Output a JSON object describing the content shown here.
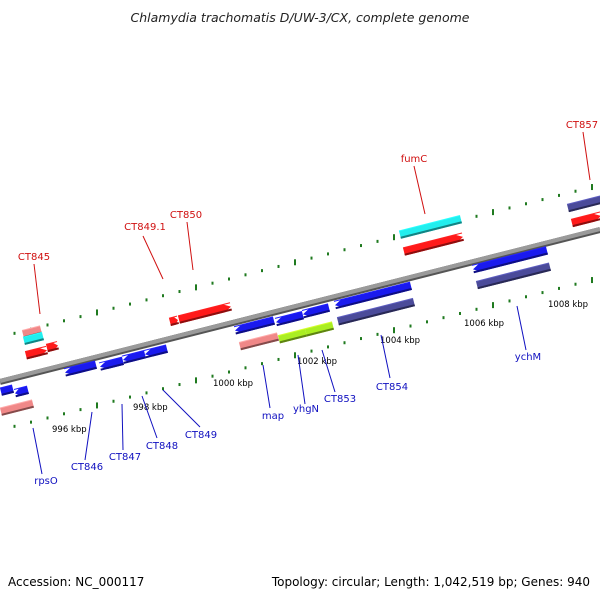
{
  "title": "Chlamydia trachomatis D/UW-3/CX, complete genome",
  "footer": {
    "accession": "Accession: NC_000117",
    "info": "Topology: circular; Length: 1,042,519 bp; Genes: 940"
  },
  "colors": {
    "backbone": "#8a8a8a",
    "ticks": "#1f7a1f",
    "label_plus": "#d01010",
    "label_minus": "#1010c0",
    "red_gene": "#ff1a1a",
    "blue_gene": "#1a1aee",
    "cyan_gene": "#22eeee",
    "pink_gene": "#f08888",
    "green_gene": "#aaee22",
    "slate_gene": "#4b4b9a"
  },
  "kbp_labels": [
    "996 kbp",
    "998 kbp",
    "1000 kbp",
    "1002 kbp",
    "1004 kbp",
    "1006 kbp",
    "1008 kbp"
  ],
  "gene_labels_top": [
    "CT845",
    "CT849.1",
    "CT850",
    "fumC",
    "CT857"
  ],
  "gene_labels_bottom": [
    "rpsO",
    "CT846",
    "CT847",
    "CT848",
    "CT849",
    "map",
    "yhgN",
    "CT853",
    "CT854",
    "ychM"
  ]
}
